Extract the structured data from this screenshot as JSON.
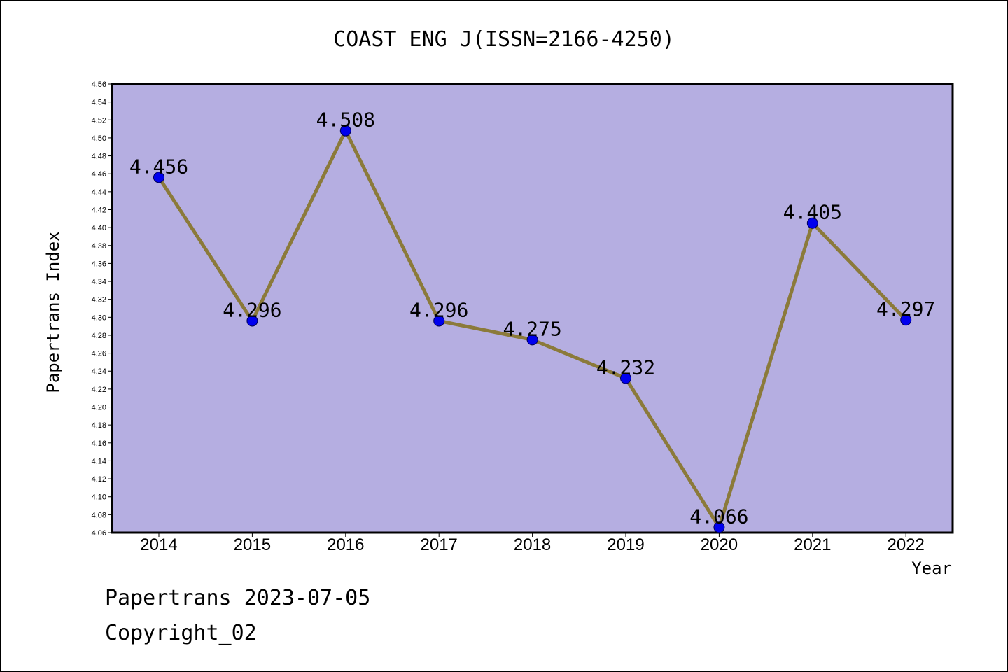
{
  "chart_data": {
    "type": "line",
    "title": "COAST ENG J(ISSN=2166-4250)",
    "xlabel": "Year",
    "ylabel": "Papertrans Index",
    "categories": [
      "2014",
      "2015",
      "2016",
      "2017",
      "2018",
      "2019",
      "2020",
      "2021",
      "2022"
    ],
    "series": [
      {
        "values": [
          4.456,
          4.296,
          4.508,
          4.296,
          4.275,
          4.232,
          4.066,
          4.405,
          4.297
        ],
        "labels": [
          "4.456",
          "4.296",
          "4.508",
          "4.296",
          "4.275",
          "4.232",
          "4.066",
          "4.405",
          "4.297"
        ]
      }
    ],
    "ylim": [
      4.06,
      4.56
    ],
    "ytick_step": 0.02,
    "ytick_labels": [
      "4.06",
      "4.08",
      "4.10",
      "4.12",
      "4.14",
      "4.16",
      "4.18",
      "4.20",
      "4.22",
      "4.24",
      "4.26",
      "4.28",
      "4.30",
      "4.32",
      "4.34",
      "4.36",
      "4.38",
      "4.40",
      "4.42",
      "4.44",
      "4.46",
      "4.48",
      "4.50",
      "4.52",
      "4.54",
      "4.56"
    ],
    "grid": false,
    "colors": {
      "plot_background": "#b5aee1",
      "line": "#8b7a3a",
      "marker": "#0000ee"
    }
  },
  "footer": {
    "date_line": "Papertrans 2023-07-05",
    "copyright": "Copyright_02"
  }
}
